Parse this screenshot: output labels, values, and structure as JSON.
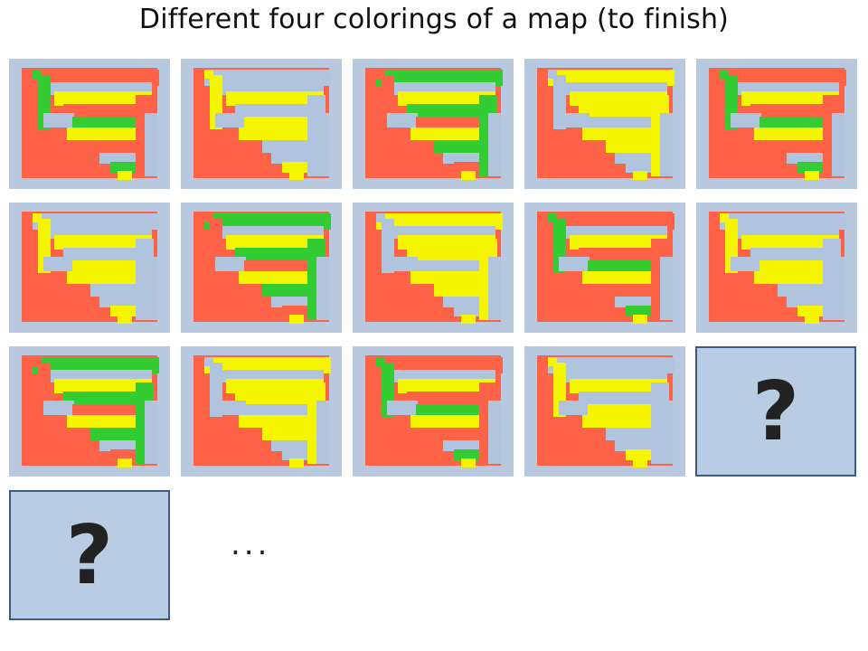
{
  "title": "Different four colorings of a map (to finish)",
  "colors": {
    "tile_background": "#b8c9df",
    "placeholder_background": "#b8cce4",
    "placeholder_border": "#3d5a80",
    "red": "#ff6347",
    "yellow": "#f5f500",
    "green": "#33cc33",
    "blue_gray": "#b0c4de"
  },
  "placeholders": [
    {
      "symbol": "?"
    },
    {
      "symbol": "?"
    }
  ],
  "ellipsis": "..."
}
